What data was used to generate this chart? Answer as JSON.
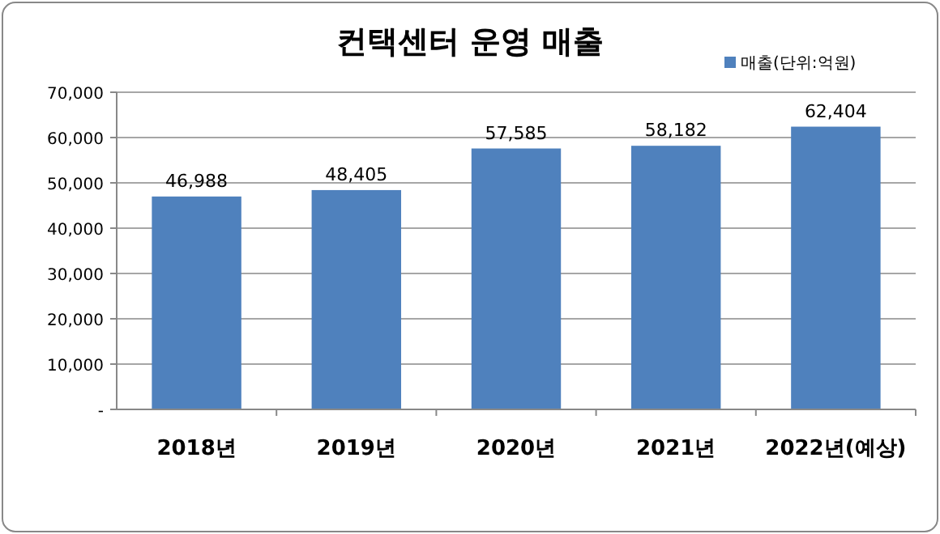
{
  "chart_data": {
    "type": "bar",
    "title": "컨택센터 운영 매출",
    "categories": [
      "2018년",
      "2019년",
      "2020년",
      "2021년",
      "2022년(예상)"
    ],
    "series": [
      {
        "name": "매출(단위:억원)",
        "color": "#4f81bd",
        "values": [
          46988,
          48405,
          57585,
          58182,
          62404
        ],
        "value_labels": [
          "46,988",
          "48,405",
          "57,585",
          "58,182",
          "62,404"
        ]
      }
    ],
    "ylim": [
      0,
      70000
    ],
    "yticks": [
      {
        "value": 0,
        "label": "-"
      },
      {
        "value": 10000,
        "label": "10,000"
      },
      {
        "value": 20000,
        "label": "20,000"
      },
      {
        "value": 30000,
        "label": "30,000"
      },
      {
        "value": 40000,
        "label": "40,000"
      },
      {
        "value": 50000,
        "label": "50,000"
      },
      {
        "value": 60000,
        "label": "60,000"
      },
      {
        "value": 70000,
        "label": "70,000"
      }
    ],
    "grid": "y",
    "legend": "top right"
  }
}
